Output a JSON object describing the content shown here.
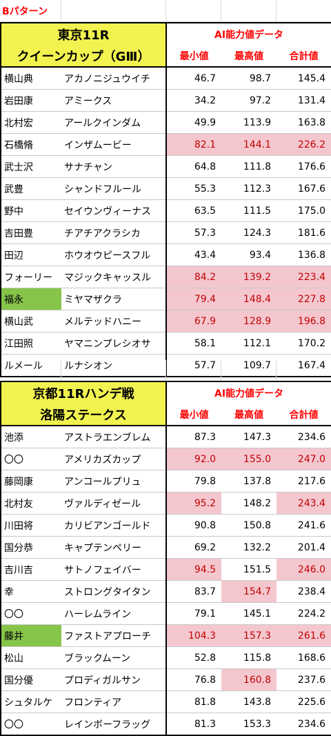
{
  "pattern_label": "Bパターン",
  "races": [
    {
      "title_line1": "東京11R",
      "title_line2": "クイーンカップ（GⅢ）",
      "ai_header": "AI能力値データ",
      "col_min": "最小値",
      "col_max": "最高値",
      "col_total": "合計値",
      "rows": [
        {
          "jockey": "横山典",
          "horse": "アカノニジュウイチ",
          "min": "46.7",
          "max": "98.7",
          "total": "145.4",
          "jockey_hl": "",
          "min_hl": "",
          "max_hl": "",
          "total_hl": ""
        },
        {
          "jockey": "岩田康",
          "horse": "アミークス",
          "min": "34.2",
          "max": "97.2",
          "total": "131.4",
          "jockey_hl": "",
          "min_hl": "",
          "max_hl": "",
          "total_hl": ""
        },
        {
          "jockey": "北村宏",
          "horse": "アールクインダム",
          "min": "49.9",
          "max": "113.9",
          "total": "163.8",
          "jockey_hl": "",
          "min_hl": "",
          "max_hl": "",
          "total_hl": ""
        },
        {
          "jockey": "石橋脩",
          "horse": "インザムービー",
          "min": "82.1",
          "max": "144.1",
          "total": "226.2",
          "jockey_hl": "",
          "min_hl": "pink",
          "max_hl": "pink",
          "total_hl": "pink"
        },
        {
          "jockey": "武士沢",
          "horse": "サナチャン",
          "min": "64.8",
          "max": "111.8",
          "total": "176.6",
          "jockey_hl": "",
          "min_hl": "",
          "max_hl": "",
          "total_hl": ""
        },
        {
          "jockey": "武豊",
          "horse": "シャンドフルール",
          "min": "55.3",
          "max": "112.3",
          "total": "167.6",
          "jockey_hl": "",
          "min_hl": "",
          "max_hl": "",
          "total_hl": ""
        },
        {
          "jockey": "野中",
          "horse": "セイウンヴィーナス",
          "min": "63.5",
          "max": "111.5",
          "total": "175.0",
          "jockey_hl": "",
          "min_hl": "",
          "max_hl": "",
          "total_hl": ""
        },
        {
          "jockey": "吉田豊",
          "horse": "チアチアクラシカ",
          "min": "57.3",
          "max": "124.3",
          "total": "181.6",
          "jockey_hl": "",
          "min_hl": "",
          "max_hl": "",
          "total_hl": ""
        },
        {
          "jockey": "田辺",
          "horse": "ホウオウピースフル",
          "min": "43.4",
          "max": "93.4",
          "total": "136.8",
          "jockey_hl": "",
          "min_hl": "",
          "max_hl": "",
          "total_hl": ""
        },
        {
          "jockey": "フォーリー",
          "horse": "マジックキャッスル",
          "min": "84.2",
          "max": "139.2",
          "total": "223.4",
          "jockey_hl": "",
          "min_hl": "pink",
          "max_hl": "pink",
          "total_hl": "pink"
        },
        {
          "jockey": "福永",
          "horse": "ミヤマザクラ",
          "min": "79.4",
          "max": "148.4",
          "total": "227.8",
          "jockey_hl": "green",
          "min_hl": "pink",
          "max_hl": "pink",
          "total_hl": "pink"
        },
        {
          "jockey": "横山武",
          "horse": "メルテッドハニー",
          "min": "67.9",
          "max": "128.9",
          "total": "196.8",
          "jockey_hl": "",
          "min_hl": "pink",
          "max_hl": "pink",
          "total_hl": "pink"
        },
        {
          "jockey": "江田照",
          "horse": "ヤマニンプレシオサ",
          "min": "58.1",
          "max": "112.1",
          "total": "170.2",
          "jockey_hl": "",
          "min_hl": "",
          "max_hl": "",
          "total_hl": ""
        },
        {
          "jockey": "ルメール",
          "horse": "ルナシオン",
          "min": "57.7",
          "max": "109.7",
          "total": "167.4",
          "jockey_hl": "",
          "min_hl": "",
          "max_hl": "",
          "total_hl": ""
        }
      ]
    },
    {
      "title_line1": "京都11Rハンデ戦",
      "title_line2": "洛陽ステークス",
      "ai_header": "AI能力値データ",
      "col_min": "最小値",
      "col_max": "最高値",
      "col_total": "合計値",
      "rows": [
        {
          "jockey": "池添",
          "horse": "アストラエンブレム",
          "min": "87.3",
          "max": "147.3",
          "total": "234.6",
          "jockey_hl": "",
          "min_hl": "",
          "max_hl": "",
          "total_hl": ""
        },
        {
          "jockey": "〇〇",
          "horse": "アメリカズカップ",
          "min": "92.0",
          "max": "155.0",
          "total": "247.0",
          "jockey_hl": "",
          "min_hl": "pink",
          "max_hl": "pink",
          "total_hl": "pink"
        },
        {
          "jockey": "藤岡康",
          "horse": "アンコールプリュ",
          "min": "79.8",
          "max": "137.8",
          "total": "217.6",
          "jockey_hl": "",
          "min_hl": "",
          "max_hl": "",
          "total_hl": ""
        },
        {
          "jockey": "北村友",
          "horse": "ヴァルディゼール",
          "min": "95.2",
          "max": "148.2",
          "total": "243.4",
          "jockey_hl": "",
          "min_hl": "pink",
          "max_hl": "",
          "total_hl": "pink"
        },
        {
          "jockey": "川田将",
          "horse": "カリビアンゴールド",
          "min": "90.8",
          "max": "150.8",
          "total": "241.6",
          "jockey_hl": "",
          "min_hl": "",
          "max_hl": "",
          "total_hl": ""
        },
        {
          "jockey": "国分恭",
          "horse": "キャプテンペリー",
          "min": "69.2",
          "max": "132.2",
          "total": "201.4",
          "jockey_hl": "",
          "min_hl": "",
          "max_hl": "",
          "total_hl": ""
        },
        {
          "jockey": "吉川吉",
          "horse": "サトノフェイバー",
          "min": "94.5",
          "max": "151.5",
          "total": "246.0",
          "jockey_hl": "",
          "min_hl": "pink",
          "max_hl": "",
          "total_hl": "pink"
        },
        {
          "jockey": "幸",
          "horse": "ストロングタイタン",
          "min": "83.7",
          "max": "154.7",
          "total": "238.4",
          "jockey_hl": "",
          "min_hl": "",
          "max_hl": "pink",
          "total_hl": ""
        },
        {
          "jockey": "〇〇",
          "horse": "ハーレムライン",
          "min": "79.1",
          "max": "145.1",
          "total": "224.2",
          "jockey_hl": "",
          "min_hl": "",
          "max_hl": "",
          "total_hl": ""
        },
        {
          "jockey": "藤井",
          "horse": "ファストアプローチ",
          "min": "104.3",
          "max": "157.3",
          "total": "261.6",
          "jockey_hl": "green",
          "min_hl": "pink",
          "max_hl": "pink",
          "total_hl": "pink"
        },
        {
          "jockey": "松山",
          "horse": "ブラックムーン",
          "min": "52.8",
          "max": "115.8",
          "total": "168.6",
          "jockey_hl": "",
          "min_hl": "",
          "max_hl": "",
          "total_hl": ""
        },
        {
          "jockey": "国分優",
          "horse": "プロディガルサン",
          "min": "76.8",
          "max": "160.8",
          "total": "237.6",
          "jockey_hl": "",
          "min_hl": "",
          "max_hl": "pink",
          "total_hl": ""
        },
        {
          "jockey": "シュタルケ",
          "horse": "フロンティア",
          "min": "81.8",
          "max": "143.8",
          "total": "225.6",
          "jockey_hl": "",
          "min_hl": "",
          "max_hl": "",
          "total_hl": ""
        },
        {
          "jockey": "〇〇",
          "horse": "レインボーフラッグ",
          "min": "81.3",
          "max": "153.3",
          "total": "234.6",
          "jockey_hl": "",
          "min_hl": "",
          "max_hl": "",
          "total_hl": ""
        }
      ]
    }
  ]
}
